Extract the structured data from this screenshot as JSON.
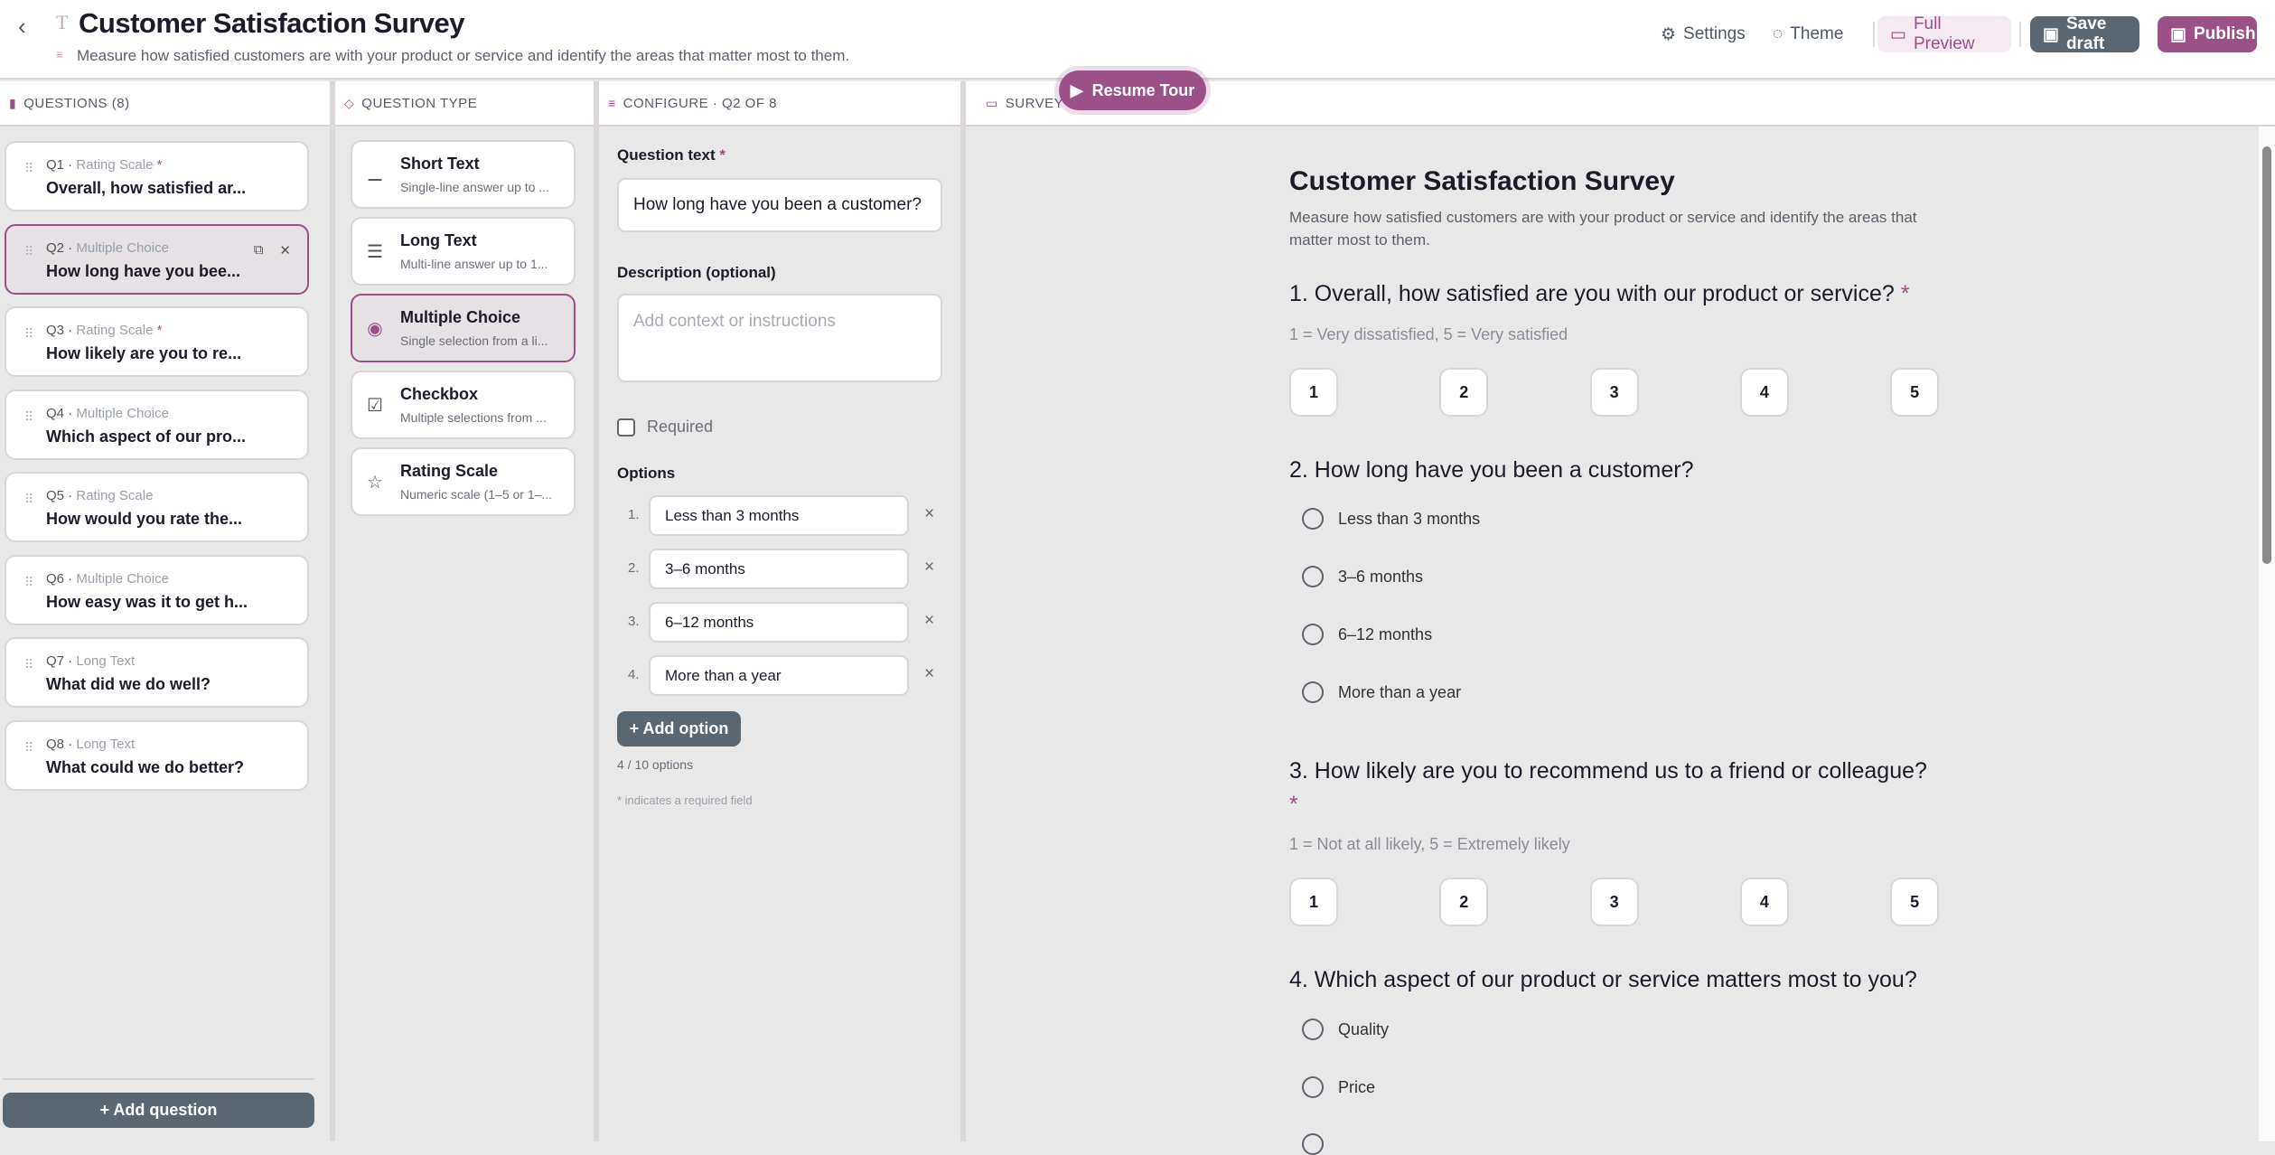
{
  "header": {
    "back_icon": "chevron-left-icon",
    "title": "Customer Satisfaction Survey",
    "subtitle": "Measure how satisfied customers are with your product or service and identify the areas that matter most to them.",
    "settings": "Settings",
    "theme": "Theme",
    "full_preview": "Full Preview",
    "save_draft": "Save draft",
    "publish": "Publish"
  },
  "colors": {
    "accent": "#9c5088",
    "dark_button": "#5a6670",
    "panel_bg": "#e9e8e9"
  },
  "questions_panel": {
    "title": "QUESTIONS (8)",
    "add_label": "+ Add question",
    "items": [
      {
        "num": "Q1",
        "type": "Rating Scale",
        "required": "*",
        "text": "Overall, how satisfied ar..."
      },
      {
        "num": "Q2",
        "type": "Multiple Choice",
        "required": "",
        "text": "How long have you bee..."
      },
      {
        "num": "Q3",
        "type": "Rating Scale",
        "required": "*",
        "text": "How likely are you to re..."
      },
      {
        "num": "Q4",
        "type": "Multiple Choice",
        "required": "",
        "text": "Which aspect of our pro..."
      },
      {
        "num": "Q5",
        "type": "Rating Scale",
        "required": "",
        "text": "How would you rate the..."
      },
      {
        "num": "Q6",
        "type": "Multiple Choice",
        "required": "",
        "text": "How easy was it to get h..."
      },
      {
        "num": "Q7",
        "type": "Long Text",
        "required": "",
        "text": "What did we do well?"
      },
      {
        "num": "Q8",
        "type": "Long Text",
        "required": "",
        "text": "What could we do better?"
      }
    ]
  },
  "type_panel": {
    "title": "QUESTION TYPE",
    "items": [
      {
        "name": "Short Text",
        "desc": "Single-line answer up to ...",
        "icon": "short-text-icon"
      },
      {
        "name": "Long Text",
        "desc": "Multi-line answer up to 1...",
        "icon": "long-text-icon"
      },
      {
        "name": "Multiple Choice",
        "desc": "Single selection from a li...",
        "icon": "radio-icon"
      },
      {
        "name": "Checkbox",
        "desc": "Multiple selections from ...",
        "icon": "checkbox-icon"
      },
      {
        "name": "Rating Scale",
        "desc": "Numeric scale (1–5 or 1–...",
        "icon": "star-icon"
      }
    ]
  },
  "configure": {
    "title": "CONFIGURE · Q2 OF 8",
    "question_label": "Question text",
    "req_mark": "*",
    "question_value": "How long have you been a customer?",
    "desc_label": "Description (optional)",
    "desc_placeholder": "Add context or instructions",
    "required_label": "Required",
    "required_checked": false,
    "options_label": "Options",
    "options": [
      "Less than 3 months",
      "3–6 months",
      "6–12 months",
      "More than a year"
    ],
    "option_numbers": [
      "1.",
      "2.",
      "3.",
      "4."
    ],
    "add_option": "+ Add option",
    "count": "4 / 10 options",
    "footnote": "* indicates a required field"
  },
  "survey": {
    "panel_title": "SURVEY",
    "resume_tour": "Resume Tour",
    "title": "Customer Satisfaction Survey",
    "desc": "Measure how satisfied customers are with your product or service and identify the areas that matter most to them.",
    "q1": {
      "title": "1. Overall, how satisfied are you with our product or service?",
      "req": "*",
      "hint": "1 = Very dissatisfied, 5 = Very satisfied",
      "scale": [
        "1",
        "2",
        "3",
        "4",
        "5"
      ]
    },
    "q2": {
      "title": "2. How long have you been a customer?",
      "options": [
        "Less than 3 months",
        "3–6 months",
        "6–12 months",
        "More than a year"
      ]
    },
    "q3": {
      "title": "3. How likely are you to recommend us to a friend or colleague?",
      "req": "*",
      "hint": "1 = Not at all likely, 5 = Extremely likely",
      "scale": [
        "1",
        "2",
        "3",
        "4",
        "5"
      ]
    },
    "q4": {
      "title": "4. Which aspect of our product or service matters most to you?",
      "options": [
        "Quality",
        "Price"
      ]
    }
  }
}
